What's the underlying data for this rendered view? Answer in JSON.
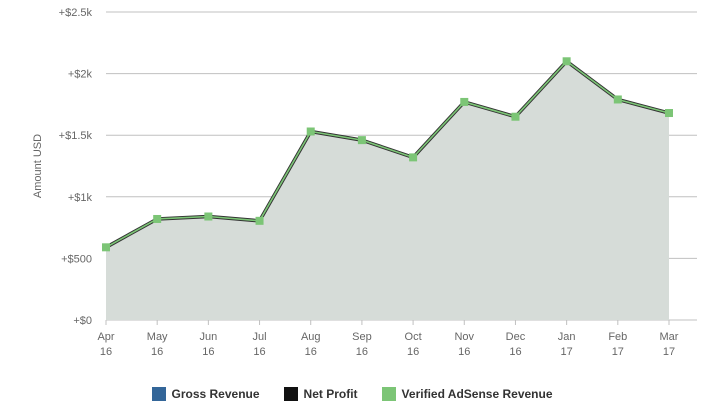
{
  "chart_data": {
    "type": "area",
    "ylabel": "Amount USD",
    "ylim": [
      0,
      2500
    ],
    "yticks": [
      0,
      500,
      1000,
      1500,
      2000,
      2500
    ],
    "ytick_labels": [
      "+$0",
      "+$500",
      "+$1k",
      "+$1.5k",
      "+$2k",
      "+$2.5k"
    ],
    "categories": [
      {
        "month": "Apr",
        "year": "16"
      },
      {
        "month": "May",
        "year": "16"
      },
      {
        "month": "Jun",
        "year": "16"
      },
      {
        "month": "Jul",
        "year": "16"
      },
      {
        "month": "Aug",
        "year": "16"
      },
      {
        "month": "Sep",
        "year": "16"
      },
      {
        "month": "Oct",
        "year": "16"
      },
      {
        "month": "Nov",
        "year": "16"
      },
      {
        "month": "Dec",
        "year": "16"
      },
      {
        "month": "Jan",
        "year": "17"
      },
      {
        "month": "Feb",
        "year": "17"
      },
      {
        "month": "Mar",
        "year": "17"
      }
    ],
    "series": [
      {
        "name": "Gross Revenue",
        "color": "#336699",
        "values": [
          590,
          820,
          840,
          805,
          1530,
          1460,
          1320,
          1770,
          1650,
          2100,
          1790,
          1680
        ]
      },
      {
        "name": "Net Profit",
        "color": "#111111",
        "values": [
          590,
          820,
          840,
          805,
          1530,
          1460,
          1320,
          1770,
          1650,
          2100,
          1790,
          1680
        ]
      },
      {
        "name": "Verified AdSense Revenue",
        "color": "#7cc576",
        "values": [
          590,
          820,
          840,
          805,
          1530,
          1460,
          1320,
          1770,
          1650,
          2100,
          1790,
          1680
        ]
      }
    ],
    "area_fill": "#d6dcd8",
    "grid": true,
    "legend_position": "bottom"
  }
}
